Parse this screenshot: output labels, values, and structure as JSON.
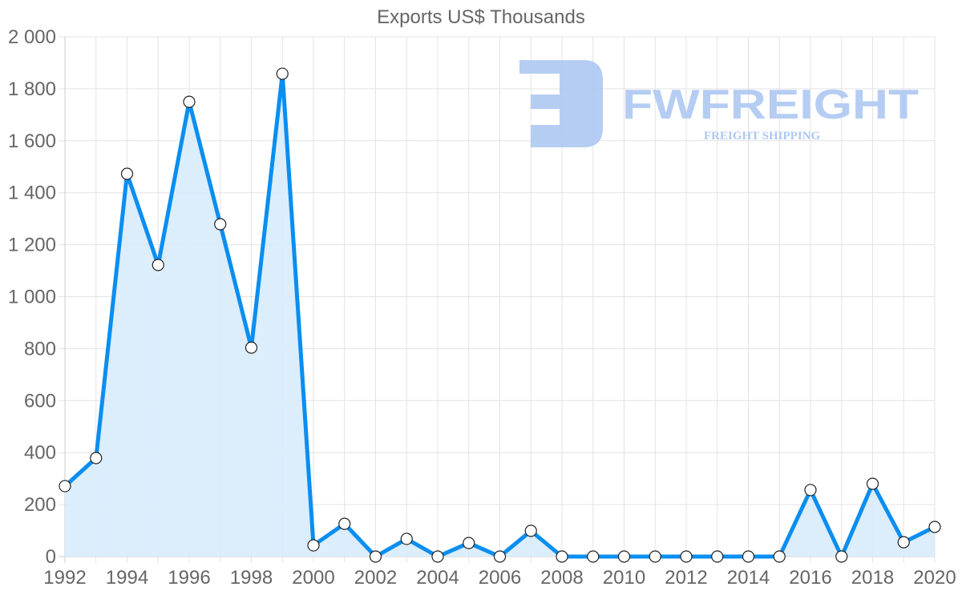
{
  "chart_data": {
    "type": "line",
    "title": "Exports US$ Thousands",
    "xlabel": "",
    "ylabel": "",
    "x": [
      1992,
      1993,
      1994,
      1995,
      1996,
      1997,
      1998,
      1999,
      2000,
      2001,
      2002,
      2003,
      2004,
      2005,
      2006,
      2007,
      2008,
      2009,
      2010,
      2011,
      2012,
      2013,
      2014,
      2015,
      2016,
      2017,
      2018,
      2019,
      2020
    ],
    "series": [
      {
        "name": "Exports US$ Thousands",
        "values": [
          271,
          379,
          1473,
          1122,
          1750,
          1279,
          804,
          1858,
          43,
          126,
          0,
          68,
          0,
          52,
          0,
          99,
          0,
          0,
          0,
          0,
          0,
          0,
          0,
          0,
          256,
          0,
          280,
          55,
          114
        ],
        "color": "#0a8ef0",
        "fill": "#d8ebfc",
        "area_filled": true
      }
    ],
    "xticks": [
      "1992",
      "1994",
      "1996",
      "1998",
      "2000",
      "2002",
      "2004",
      "2006",
      "2008",
      "2010",
      "2012",
      "2014",
      "2016",
      "2018",
      "2020"
    ],
    "yticks": [
      "0",
      "200",
      "400",
      "600",
      "800",
      "1 000",
      "1 200",
      "1 400",
      "1 600",
      "1 800",
      "2 000"
    ],
    "ylim": [
      0,
      2000
    ],
    "xlim": [
      1992,
      2020
    ],
    "grid": true,
    "legend": "none"
  },
  "watermark": {
    "brand": "FWFREIGHT",
    "tagline": "FREIGHT SHIPPING",
    "color": "#adc8f2"
  }
}
